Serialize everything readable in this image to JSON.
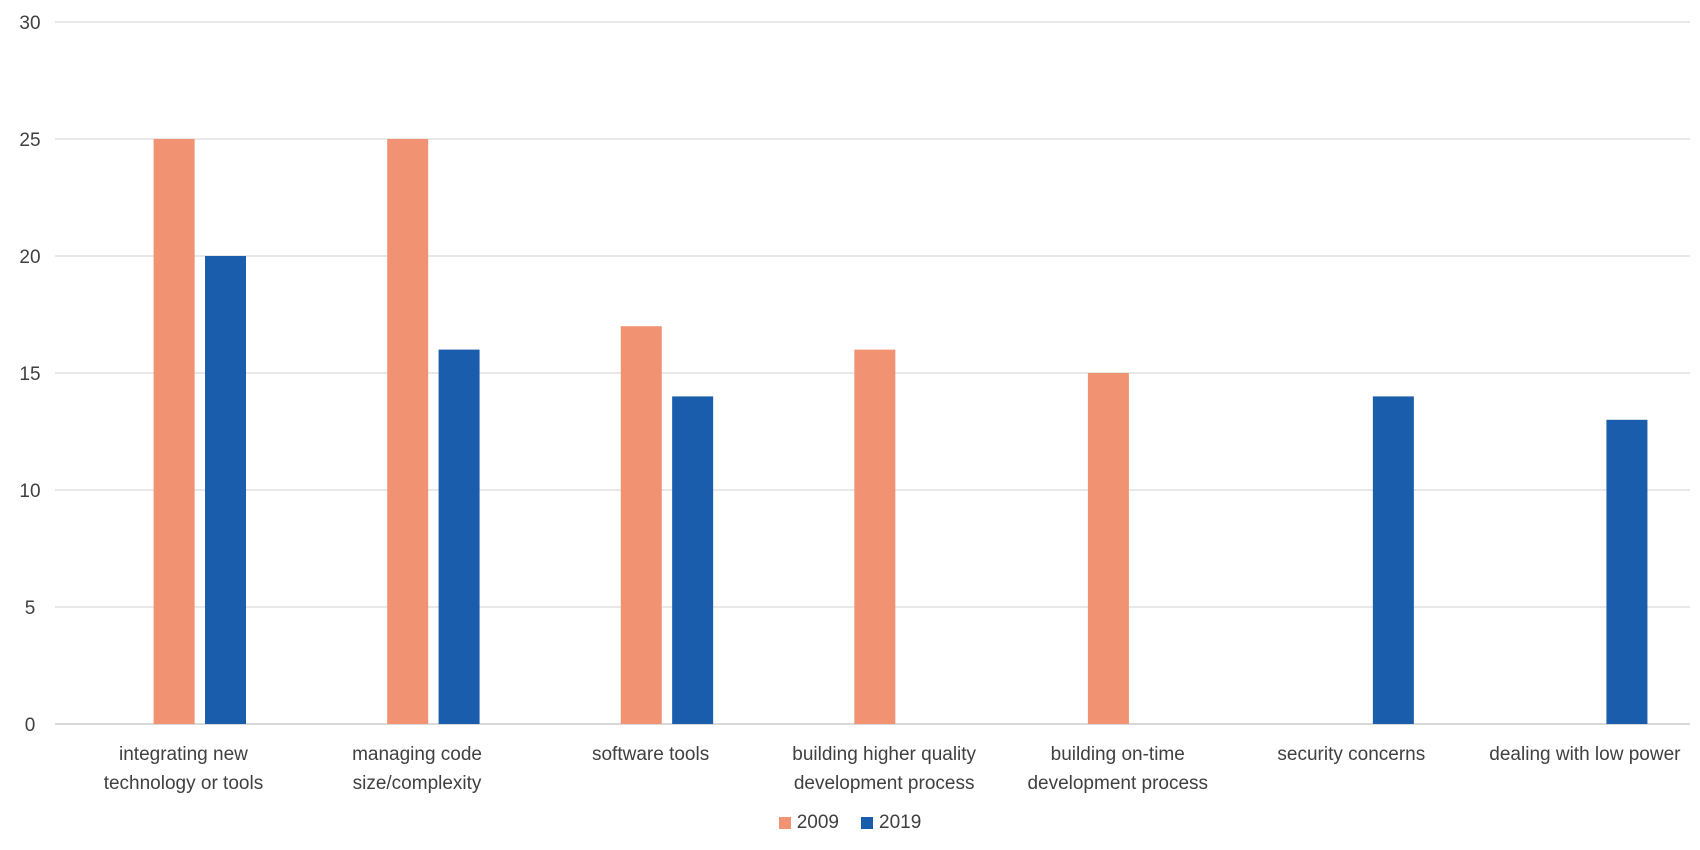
{
  "chart_data": {
    "type": "bar",
    "title": "",
    "xlabel": "",
    "ylabel": "",
    "ylim": [
      0,
      30
    ],
    "yticks": [
      0,
      5,
      10,
      15,
      20,
      25,
      30
    ],
    "grid": true,
    "legend_position": "bottom",
    "categories": [
      [
        "integrating new",
        "technology or tools"
      ],
      [
        "managing code",
        "size/complexity"
      ],
      [
        "software tools"
      ],
      [
        "building higher quality",
        "development process"
      ],
      [
        "building on-time",
        "development process"
      ],
      [
        "security concerns"
      ],
      [
        "dealing with low power"
      ]
    ],
    "series": [
      {
        "name": "2009",
        "color": "#F19373",
        "values": [
          25,
          25,
          17,
          16,
          15,
          null,
          null
        ]
      },
      {
        "name": "2019",
        "color": "#1A5DAD",
        "values": [
          20,
          16,
          14,
          null,
          null,
          14,
          13
        ]
      }
    ]
  }
}
